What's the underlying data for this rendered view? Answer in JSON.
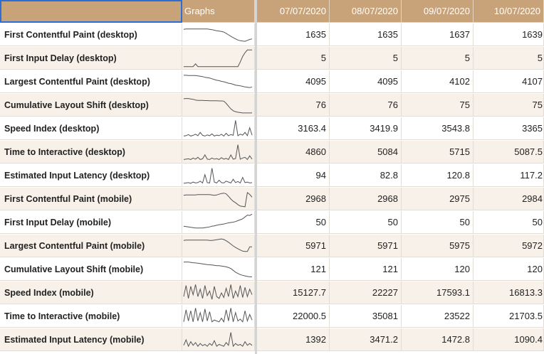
{
  "header": {
    "graphs_label": "Graphs",
    "dates": [
      "07/07/2020",
      "08/07/2020",
      "09/07/2020",
      "10/07/2020"
    ]
  },
  "rows": [
    {
      "name": "First Contentful Paint (desktop)",
      "values": [
        "1635",
        "1635",
        "1637",
        "1639"
      ],
      "spark": [
        0.8,
        0.82,
        0.82,
        0.82,
        0.82,
        0.82,
        0.82,
        0.82,
        0.82,
        0.82,
        0.82,
        0.8,
        0.78,
        0.75,
        0.72,
        0.7,
        0.68,
        0.65,
        0.58,
        0.5,
        0.42,
        0.35,
        0.28,
        0.22,
        0.18,
        0.16,
        0.15,
        0.2,
        0.25,
        0.28
      ]
    },
    {
      "name": "First Input Delay (desktop)",
      "values": [
        "5",
        "5",
        "5",
        "5"
      ],
      "spark": [
        0.05,
        0.05,
        0.05,
        0.05,
        0.05,
        0.2,
        0.05,
        0.05,
        0.05,
        0.05,
        0.05,
        0.05,
        0.05,
        0.05,
        0.05,
        0.05,
        0.05,
        0.05,
        0.05,
        0.05,
        0.05,
        0.05,
        0.05,
        0.05,
        0.3,
        0.6,
        0.8,
        0.95,
        0.95,
        0.95
      ]
    },
    {
      "name": "Largest Contentful Paint (desktop)",
      "values": [
        "4095",
        "4095",
        "4102",
        "4107"
      ],
      "spark": [
        0.85,
        0.85,
        0.84,
        0.84,
        0.84,
        0.84,
        0.82,
        0.8,
        0.78,
        0.74,
        0.72,
        0.7,
        0.66,
        0.62,
        0.58,
        0.56,
        0.52,
        0.5,
        0.46,
        0.42,
        0.4,
        0.36,
        0.32,
        0.3,
        0.28,
        0.25,
        0.22,
        0.2,
        0.18,
        0.22
      ]
    },
    {
      "name": "Cumulative Layout Shift (desktop)",
      "values": [
        "76",
        "76",
        "75",
        "75"
      ],
      "spark": [
        0.85,
        0.86,
        0.86,
        0.84,
        0.82,
        0.78,
        0.76,
        0.76,
        0.76,
        0.75,
        0.75,
        0.74,
        0.74,
        0.74,
        0.74,
        0.73,
        0.73,
        0.72,
        0.6,
        0.45,
        0.3,
        0.2,
        0.15,
        0.12,
        0.1,
        0.08,
        0.08,
        0.08,
        0.08,
        0.08
      ]
    },
    {
      "name": "Speed Index (desktop)",
      "values": [
        "3163.4",
        "3419.9",
        "3543.8",
        "3365"
      ],
      "spark": [
        0.1,
        0.12,
        0.18,
        0.1,
        0.14,
        0.2,
        0.12,
        0.3,
        0.14,
        0.1,
        0.16,
        0.12,
        0.22,
        0.1,
        0.15,
        0.12,
        0.2,
        0.1,
        0.25,
        0.12,
        0.18,
        0.14,
        0.95,
        0.12,
        0.2,
        0.15,
        0.3,
        0.12,
        0.55,
        0.15
      ]
    },
    {
      "name": "Time to Interactive (desktop)",
      "values": [
        "4860",
        "5084",
        "5715",
        "5087.5"
      ],
      "spark": [
        0.1,
        0.12,
        0.14,
        0.1,
        0.18,
        0.12,
        0.22,
        0.1,
        0.14,
        0.35,
        0.12,
        0.1,
        0.18,
        0.12,
        0.15,
        0.1,
        0.2,
        0.12,
        0.16,
        0.1,
        0.35,
        0.12,
        0.15,
        0.9,
        0.12,
        0.18,
        0.22,
        0.1,
        0.3,
        0.12
      ]
    },
    {
      "name": "Estimated Input Latency (desktop)",
      "values": [
        "94",
        "82.8",
        "120.8",
        "117.2"
      ],
      "spark": [
        0.08,
        0.1,
        0.12,
        0.08,
        0.15,
        0.1,
        0.12,
        0.2,
        0.1,
        0.55,
        0.12,
        0.1,
        0.9,
        0.15,
        0.1,
        0.25,
        0.12,
        0.1,
        0.2,
        0.15,
        0.1,
        0.3,
        0.12,
        0.18,
        0.1,
        0.4,
        0.12,
        0.15,
        0.1,
        0.12
      ]
    },
    {
      "name": "First Contentful Paint (mobile)",
      "values": [
        "2968",
        "2968",
        "2975",
        "2984"
      ],
      "spark": [
        0.7,
        0.72,
        0.72,
        0.72,
        0.72,
        0.72,
        0.74,
        0.74,
        0.74,
        0.74,
        0.74,
        0.74,
        0.72,
        0.7,
        0.72,
        0.76,
        0.8,
        0.82,
        0.78,
        0.65,
        0.5,
        0.38,
        0.3,
        0.2,
        0.12,
        0.1,
        0.08,
        0.85,
        0.75,
        0.6
      ]
    },
    {
      "name": "First Input Delay (mobile)",
      "values": [
        "50",
        "50",
        "50",
        "50"
      ],
      "spark": [
        0.3,
        0.28,
        0.26,
        0.24,
        0.22,
        0.2,
        0.2,
        0.2,
        0.2,
        0.22,
        0.24,
        0.26,
        0.3,
        0.32,
        0.35,
        0.38,
        0.4,
        0.42,
        0.45,
        0.48,
        0.5,
        0.52,
        0.55,
        0.6,
        0.65,
        0.7,
        0.8,
        0.9,
        0.88,
        0.95
      ]
    },
    {
      "name": "Largest Contentful Paint (mobile)",
      "values": [
        "5971",
        "5971",
        "5975",
        "5972"
      ],
      "spark": [
        0.8,
        0.82,
        0.82,
        0.82,
        0.82,
        0.82,
        0.82,
        0.82,
        0.82,
        0.82,
        0.82,
        0.8,
        0.8,
        0.82,
        0.84,
        0.86,
        0.88,
        0.85,
        0.78,
        0.7,
        0.6,
        0.5,
        0.42,
        0.35,
        0.28,
        0.22,
        0.2,
        0.2,
        0.45,
        0.45
      ]
    },
    {
      "name": "Cumulative Layout Shift (mobile)",
      "values": [
        "121",
        "121",
        "120",
        "120"
      ],
      "spark": [
        0.9,
        0.9,
        0.9,
        0.88,
        0.86,
        0.85,
        0.84,
        0.82,
        0.8,
        0.78,
        0.76,
        0.75,
        0.74,
        0.72,
        0.7,
        0.7,
        0.68,
        0.66,
        0.64,
        0.6,
        0.55,
        0.45,
        0.35,
        0.28,
        0.22,
        0.18,
        0.15,
        0.12,
        0.1,
        0.1
      ]
    },
    {
      "name": "Speed Index (mobile)",
      "values": [
        "15127.7",
        "22227",
        "17593.1",
        "16813.3"
      ],
      "spark": [
        0.3,
        0.9,
        0.2,
        0.85,
        0.4,
        0.95,
        0.3,
        0.7,
        0.2,
        0.9,
        0.35,
        0.6,
        0.15,
        0.85,
        0.3,
        0.2,
        0.5,
        0.25,
        0.75,
        0.3,
        0.95,
        0.2,
        0.6,
        0.3,
        0.9,
        0.25,
        0.8,
        0.3,
        0.7,
        0.4
      ]
    },
    {
      "name": "Time to Interactive (mobile)",
      "values": [
        "22000.5",
        "35081",
        "23522",
        "21703.5"
      ],
      "spark": [
        0.2,
        0.85,
        0.25,
        0.8,
        0.2,
        0.95,
        0.25,
        0.7,
        0.2,
        0.9,
        0.25,
        0.75,
        0.2,
        0.3,
        0.25,
        0.2,
        0.4,
        0.2,
        0.85,
        0.25,
        0.95,
        0.2,
        0.7,
        0.25,
        0.35,
        0.2,
        0.8,
        0.25,
        0.6,
        0.3
      ]
    },
    {
      "name": "Estimated Input Latency (mobile)",
      "values": [
        "1392",
        "3471.2",
        "1472.8",
        "1090.4"
      ],
      "spark": [
        0.2,
        0.5,
        0.15,
        0.4,
        0.2,
        0.35,
        0.15,
        0.3,
        0.18,
        0.25,
        0.15,
        0.3,
        0.2,
        0.45,
        0.15,
        0.25,
        0.2,
        0.15,
        0.35,
        0.2,
        0.9,
        0.15,
        0.3,
        0.2,
        0.25,
        0.15,
        0.4,
        0.2,
        0.3,
        0.2
      ]
    }
  ],
  "colors": {
    "header_bg": "#c8a37a",
    "selection_outline": "#2b6fd6",
    "sparkline": "#555555",
    "row_alt_bg": "#f7f1ea"
  }
}
